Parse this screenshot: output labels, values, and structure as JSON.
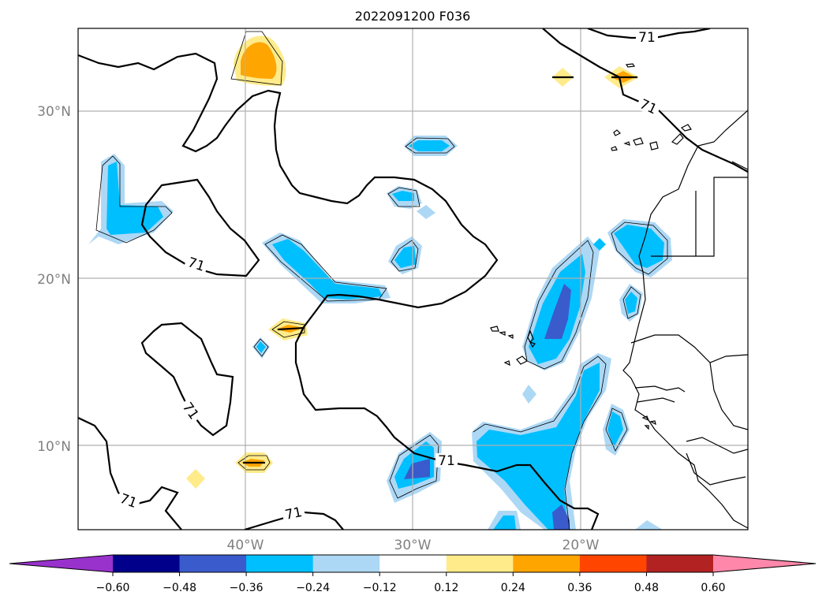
{
  "figure": {
    "title": "2022091200 F036"
  },
  "map": {
    "lat_labels": [
      "30°N",
      "20°N",
      "10°N"
    ],
    "lon_labels": [
      "40°W",
      "30°W",
      "20°W"
    ],
    "extent": {
      "lon": [
        -50,
        -10
      ],
      "lat": [
        5,
        35
      ]
    },
    "gridlines": true,
    "contour_level_label": "71"
  },
  "colorbar": {
    "ticks": [
      "−0.60",
      "−0.48",
      "−0.36",
      "−0.24",
      "−0.12",
      "0.12",
      "0.24",
      "0.36",
      "0.48",
      "0.60"
    ],
    "colors": {
      "under": "#9932cc",
      "bins": [
        "#00008b",
        "#3a5bcc",
        "#00bfff",
        "#add8f5",
        "#ffffff",
        "#ffeb8a",
        "#ffa500",
        "#ff4500",
        "#b22222"
      ],
      "over": "#ff88aa"
    },
    "extend": "both"
  }
}
